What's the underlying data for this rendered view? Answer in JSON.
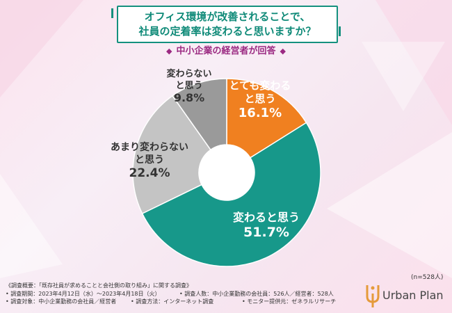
{
  "title_lines": [
    "オフィス環境が改善されることで、",
    "社員の定着率は変わると思いますか？"
  ],
  "subtitle": "中小企業の経営者が回答",
  "subtitle_marker": "◆",
  "sample_size": "(n=528人)",
  "chart_data": {
    "type": "pie",
    "slices": [
      {
        "label_lines": [
          "とても変わる",
          "と思う"
        ],
        "value": 16.1,
        "value_label": "16.1%",
        "color": "#f08020",
        "label_color": "#ffffff"
      },
      {
        "label_lines": [
          "変わると思う"
        ],
        "value": 51.7,
        "value_label": "51.7%",
        "color": "#17988a",
        "label_color": "#ffffff"
      },
      {
        "label_lines": [
          "あまり変わらない",
          "と思う"
        ],
        "value": 22.4,
        "value_label": "22.4%",
        "color": "#c4c4c4",
        "label_color": "#333333"
      },
      {
        "label_lines": [
          "変わらない",
          "と思う"
        ],
        "value": 9.8,
        "value_label": "9.8%",
        "color": "#9a9a9a",
        "label_color": "#333333"
      }
    ]
  },
  "footer": {
    "overview": "《調査概要：「既存社員が求めることと会社側の取り組み」に関する調査》",
    "items": [
      "調査期間：2023年4月12日（水）～2023年4月18日（火）",
      "調査人数：中小企業勤務の会社員：526人／経営者：528人",
      "調査対象：中小企業勤務の会社員／経営者",
      "調査方法：インターネット調査",
      "モニター提供元：ゼネラルリサーチ"
    ],
    "bullet": "•"
  },
  "logo_text": "Urban Plan",
  "colors": {
    "accent": "#14907e",
    "subtitle": "#9b2a82"
  }
}
